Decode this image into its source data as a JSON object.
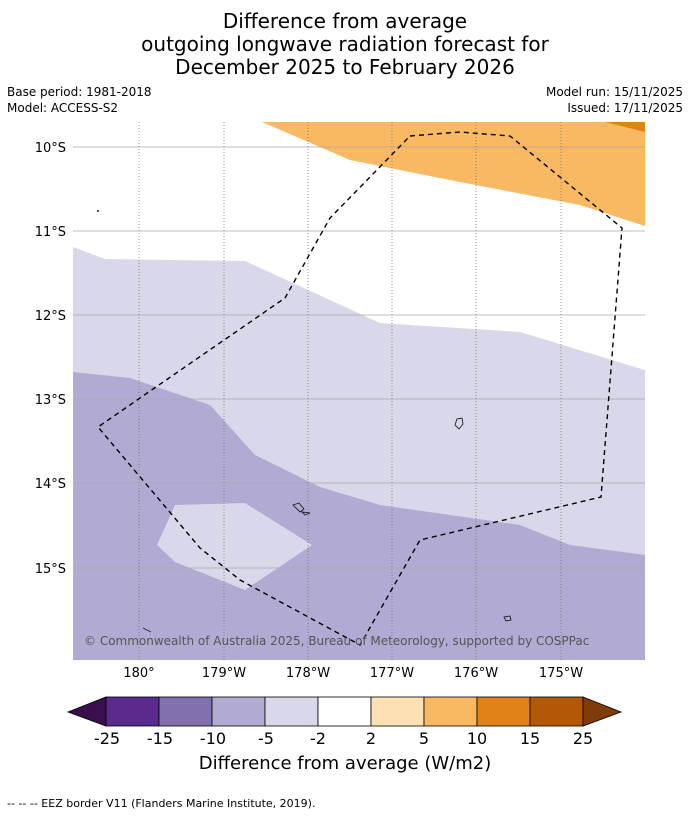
{
  "title": {
    "line1": "Difference from average",
    "line2": "outgoing longwave radiation forecast for",
    "line3": "December 2025 to February 2026"
  },
  "meta": {
    "base_period": "Base period: 1981-2018",
    "model": "Model: ACCESS-S2",
    "model_run": "Model run: 15/11/2025",
    "issued": "Issued: 17/11/2025"
  },
  "map": {
    "lat_labels": [
      "10°S",
      "11°S",
      "12°S",
      "13°S",
      "14°S",
      "15°S"
    ],
    "lon_labels": [
      "180°",
      "179°W",
      "178°W",
      "177°W",
      "176°W",
      "175°W"
    ],
    "copyright": "© Commonwealth of Australia 2025, Bureau of Meteorology, supported by COSPPac"
  },
  "colorbar": {
    "title": "Difference from average (W/m2)",
    "ticks": [
      "-25",
      "-15",
      "-10",
      "-5",
      "-2",
      "2",
      "5",
      "10",
      "15",
      "25"
    ],
    "colors": {
      "below_min": "#3b0f4f",
      "bins": [
        "#5a2a8c",
        "#8070ad",
        "#b1aad2",
        "#d8d8ea",
        "#ffffff",
        "#fde1b4",
        "#f9b862",
        "#e08218",
        "#b35806"
      ],
      "above_max": "#7f3b08"
    }
  },
  "footnote": "--  --  -- EEZ border V11 (Flanders Marine Institute, 2019)."
}
